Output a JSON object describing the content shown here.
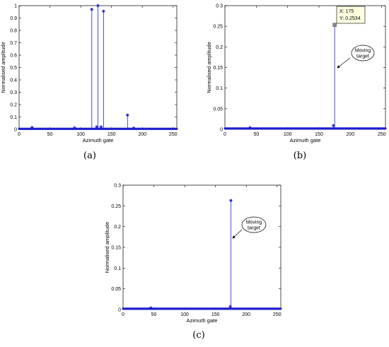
{
  "chart_data": [
    {
      "type": "scatter",
      "panel_label": "(a)",
      "xlabel": "Azimuth gate",
      "ylabel": "Normalised amplitude",
      "xlim": [
        0,
        256
      ],
      "ylim": [
        0,
        1
      ],
      "xticks": [
        "0",
        "50",
        "100",
        "150",
        "200",
        "250"
      ],
      "yticks": [
        "0",
        "0.1",
        "0.2",
        "0.3",
        "0.4",
        "0.5",
        "0.6",
        "0.7",
        "0.8",
        "0.9",
        "1"
      ],
      "grid": false,
      "marker": "*",
      "color": "#1f1fd0",
      "baseline": 0.004,
      "stems": [
        {
          "x": 21,
          "y": 0.015
        },
        {
          "x": 90,
          "y": 0.012
        },
        {
          "x": 118,
          "y": 0.97
        },
        {
          "x": 126,
          "y": 0.02
        },
        {
          "x": 128,
          "y": 1.0
        },
        {
          "x": 133,
          "y": 0.02
        },
        {
          "x": 137,
          "y": 0.955
        },
        {
          "x": 176,
          "y": 0.115
        },
        {
          "x": 186,
          "y": 0.01
        }
      ],
      "annotations": []
    },
    {
      "type": "scatter",
      "panel_label": "(b)",
      "xlabel": "Azimuth gate",
      "ylabel": "Normalised amplitude",
      "xlim": [
        0,
        256
      ],
      "ylim": [
        0,
        0.3
      ],
      "xticks": [
        "0",
        "50",
        "100",
        "150",
        "200",
        "250"
      ],
      "yticks": [
        "0",
        "0.05",
        "0.1",
        "0.15",
        "0.2",
        "0.25",
        "0.3"
      ],
      "grid": false,
      "marker": "*",
      "color": "#1f1fd0",
      "baseline": 0.002,
      "stems": [
        {
          "x": 40,
          "y": 0.004
        },
        {
          "x": 173,
          "y": 0.009
        },
        {
          "x": 175,
          "y": 0.2534
        }
      ],
      "datatip": {
        "x_text": "X: 175",
        "y_text": "Y: 0.2534",
        "x": 175,
        "y": 0.2534
      },
      "annotations": [
        {
          "line1": "Moving",
          "line2": "target"
        }
      ]
    },
    {
      "type": "scatter",
      "panel_label": "(c)",
      "xlabel": "Azimuth gate",
      "ylabel": "Normalised amplitude",
      "xlim": [
        0,
        256
      ],
      "ylim": [
        0,
        0.3
      ],
      "xticks": [
        "0",
        "50",
        "100",
        "150",
        "200",
        "250"
      ],
      "yticks": [
        "0",
        "0.05",
        "0.1",
        "0.15",
        "0.2",
        "0.25",
        "0.3"
      ],
      "grid": false,
      "marker": "*",
      "color": "#1f1fd0",
      "baseline": 0.002,
      "stems": [
        {
          "x": 45,
          "y": 0.004
        },
        {
          "x": 174,
          "y": 0.007
        },
        {
          "x": 175,
          "y": 0.263
        }
      ],
      "annotations": [
        {
          "line1": "Moving",
          "line2": "target"
        }
      ]
    }
  ]
}
